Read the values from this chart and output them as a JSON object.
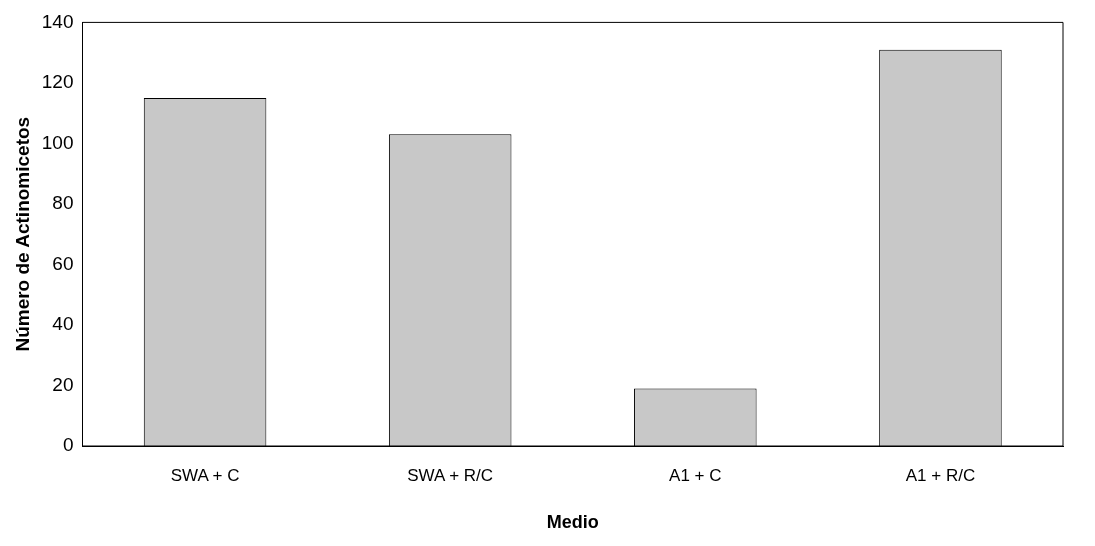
{
  "chart_data": {
    "type": "bar",
    "xlabel": "Medio",
    "ylabel": "Número de Actinomicetos",
    "categories": [
      "SWA + C",
      "SWA + R/C",
      "A1 + C",
      "A1 + R/C"
    ],
    "values": [
      115,
      103,
      19,
      131
    ],
    "color": "#c8c8c8",
    "ylim": [
      0,
      140
    ],
    "yticks": [
      0,
      20,
      40,
      60,
      80,
      100,
      120,
      140
    ],
    "grid": false,
    "legend": false
  }
}
